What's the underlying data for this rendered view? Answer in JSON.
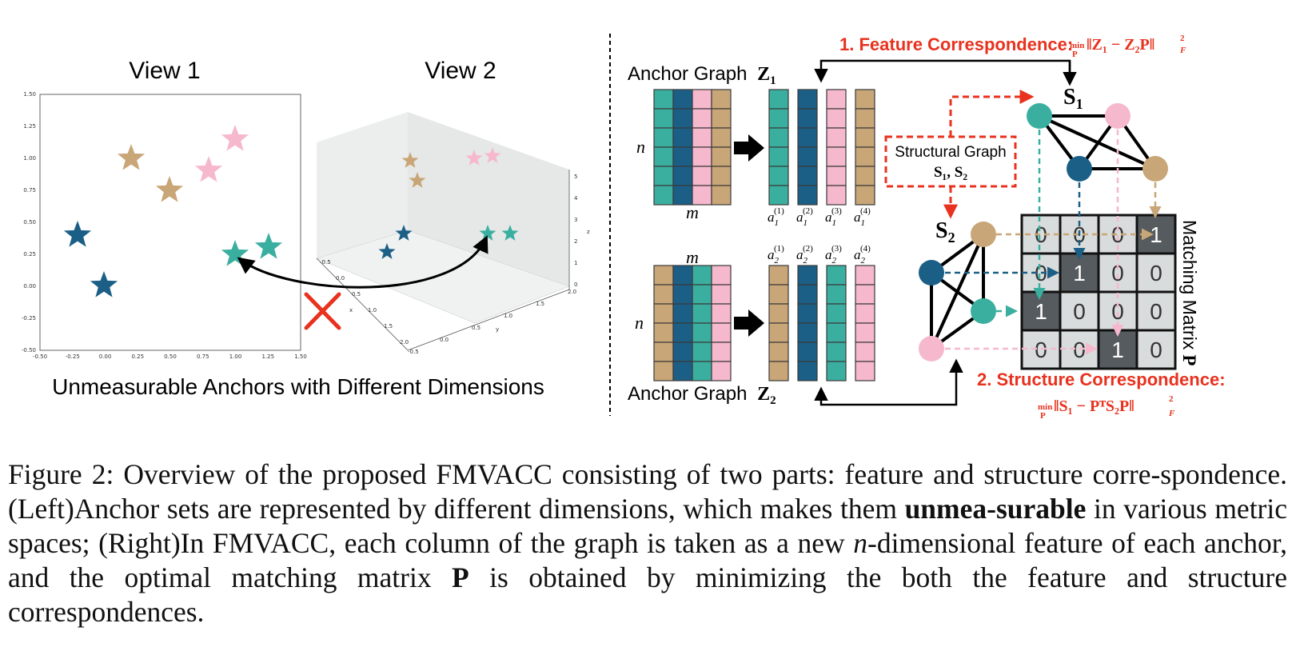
{
  "colors": {
    "teal": "#3aafa0",
    "navy": "#1b5f86",
    "pink": "#f6b8cd",
    "tan": "#c9a677",
    "red": "#e8321f",
    "dark_cell": "#555b5e",
    "light_cell": "#d9dcdc"
  },
  "left_panel": {
    "view1_title": "View 1",
    "view2_title": "View 2",
    "subtitle": "Unmeasurable Anchors with Different Dimensions",
    "view1_x_ticks": [
      "-0.50",
      "-0.25",
      "0.00",
      "0.25",
      "0.50",
      "0.75",
      "1.00",
      "1.25",
      "1.50"
    ],
    "view1_y_ticks": [
      "1.50",
      "1.25",
      "1.00",
      "0.75",
      "0.50",
      "0.25",
      "0.00",
      "-0.25",
      "-0.50"
    ],
    "view2_x_ticks": [
      "-0.5",
      "0.0",
      "0.5",
      "1.0",
      "1.5",
      "2.0"
    ],
    "view2_x_label": "x",
    "view2_y_ticks": [
      "-0.5",
      "0.0",
      "0.5",
      "1.0",
      "1.5",
      "2.0"
    ],
    "view2_y_label": "y",
    "view2_z_ticks": [
      "0",
      "1",
      "2",
      "3",
      "4",
      "5"
    ],
    "view2_z_label": "z",
    "cross_icon": "red-cross-icon"
  },
  "right_panel": {
    "anchor_graph_1_label": "Anchor Graph",
    "anchor_graph_1_symbol": "Z",
    "anchor_graph_1_sub": "1",
    "anchor_graph_2_label": "Anchor Graph",
    "anchor_graph_2_symbol": "Z",
    "anchor_graph_2_sub": "2",
    "n_label_top": "n",
    "m_label_top": "m",
    "n_label_bottom": "n",
    "m_label_bottom": "m",
    "a1_labels": [
      "1",
      "2",
      "3",
      "4"
    ],
    "a2_labels": [
      "1",
      "2",
      "3",
      "4"
    ],
    "structural_graph_title": "Structural Graph",
    "structural_graph_symbols": "S₁, S₂",
    "s1_label": "S",
    "s1_sub": "1",
    "s2_label": "S",
    "s2_sub": "2",
    "feature_title": "1. Feature Correspondence:",
    "feature_formula_min": "min",
    "feature_formula_var": "P",
    "feature_formula_body": "‖Z₁ − Z₂P‖",
    "feature_formula_sup": "2",
    "feature_formula_sub": "F",
    "structure_title": "2. Structure  Correspondence:",
    "structure_formula_min": "min",
    "structure_formula_var": "P",
    "structure_formula_body": "‖S₁ − PᵀS₂P‖",
    "structure_formula_sup": "2",
    "structure_formula_sub": "F",
    "matching_matrix_label": "Matching Matrix",
    "matching_matrix_symbol": "P",
    "matrix": [
      [
        "0",
        "0",
        "0",
        "1"
      ],
      [
        "0",
        "1",
        "0",
        "0"
      ],
      [
        "1",
        "0",
        "0",
        "0"
      ],
      [
        "0",
        "0",
        "1",
        "0"
      ]
    ]
  },
  "caption": {
    "p1": "Figure 2: Overview of the proposed FMVACC consisting of two parts: feature and structure corre-spondence. (Left)Anchor sets are represented by different dimensions, which makes them ",
    "bold": "unmea-surable",
    "p2": " in various metric spaces; (Right)In FMVACC, each column of the graph is taken as a new ",
    "italic_n": "n",
    "p3": "-dimensional feature of each anchor, and the optimal matching matrix ",
    "bold_P": "P",
    "p4": " is obtained by minimizing the both the feature and structure correspondences."
  }
}
